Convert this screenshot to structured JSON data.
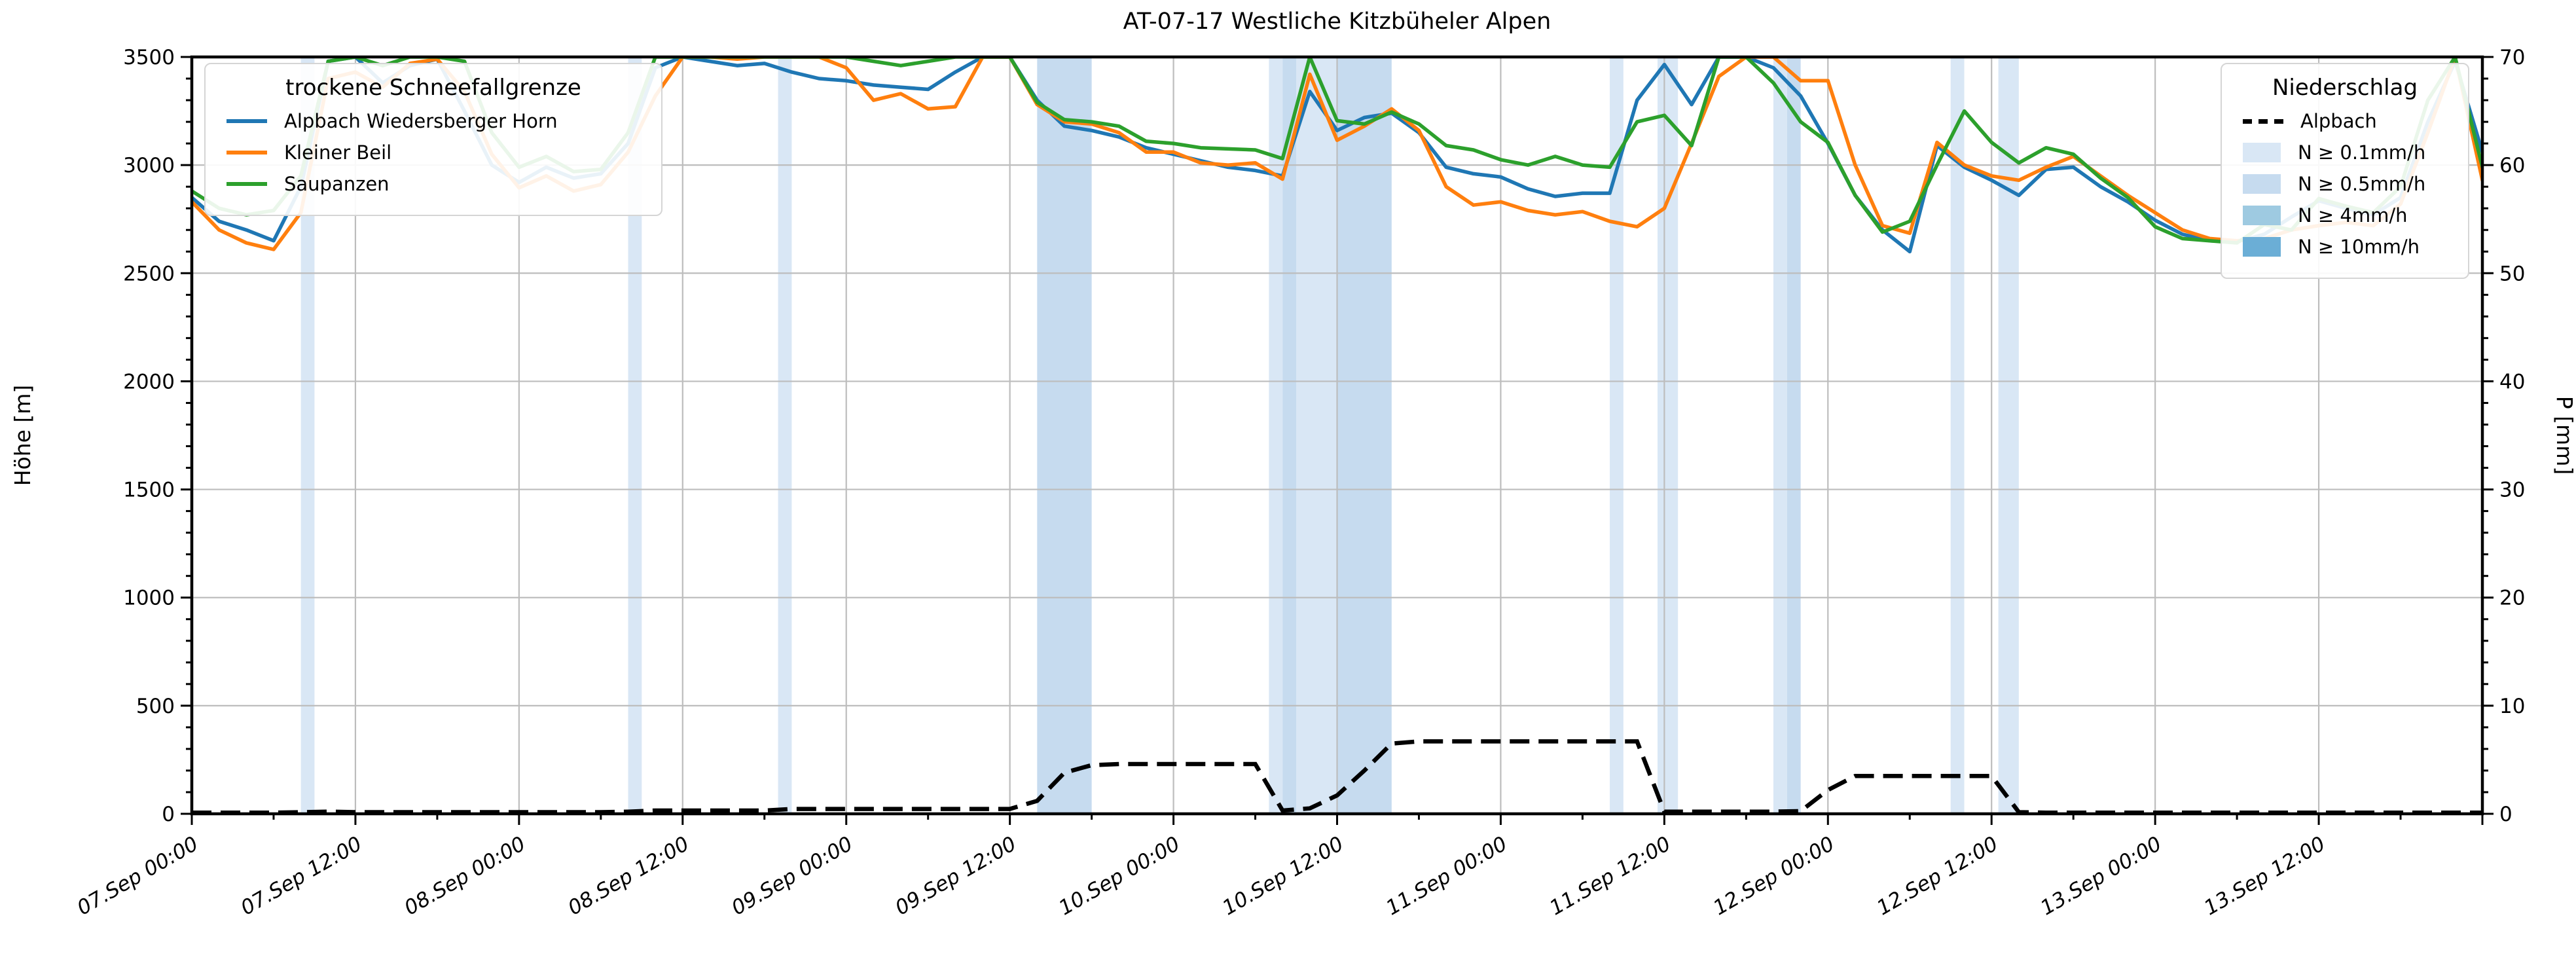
{
  "title": "AT-07-17 Westliche Kitzbüheler Alpen",
  "axes": {
    "y_left_label": "Höhe [m]",
    "y_right_label": "P [mm]",
    "y_left_ticks": [
      "0",
      "500",
      "1000",
      "1500",
      "2000",
      "2500",
      "3000",
      "3500"
    ],
    "y_right_ticks": [
      "0",
      "10",
      "20",
      "30",
      "40",
      "50",
      "60",
      "70"
    ]
  },
  "legend_snowline": {
    "title": "trockene Schneefallgrenze",
    "items": [
      {
        "label": "Alpbach Wiedersberger Horn",
        "color": "#1f77b4"
      },
      {
        "label": "Kleiner Beil",
        "color": "#ff7f0e"
      },
      {
        "label": "Saupanzen",
        "color": "#2ca02c"
      }
    ]
  },
  "legend_precip": {
    "title": "Niederschlag",
    "line_item": {
      "label": "Alpbach",
      "color": "#000000"
    },
    "band_items": [
      {
        "label": "N ≥ 0.1mm/h",
        "color": "#d9e7f5"
      },
      {
        "label": "N ≥ 0.5mm/h",
        "color": "#c6dbef"
      },
      {
        "label": "N ≥ 4mm/h",
        "color": "#9ecae1"
      },
      {
        "label": "N ≥ 10mm/h",
        "color": "#6baed6"
      }
    ]
  },
  "colors": {
    "grid": "#bdbdbd",
    "spine": "#000000",
    "band_levels": {
      "0.1": "#d9e7f5",
      "0.5": "#c6dbef",
      "4": "#9ecae1",
      "10": "#6baed6"
    }
  },
  "chart_data": {
    "type": "line",
    "title": "AT-07-17 Westliche Kitzbüheler Alpen",
    "xlabel": "",
    "ylabel_left": "Höhe [m]",
    "ylabel_right": "P [mm]",
    "x_unit": "hours since 07.Sep 00:00",
    "x_range": [
      0,
      168
    ],
    "x_major_tick_hours": 12,
    "x_minor_tick_hours": 6,
    "y_left_range": [
      0,
      3500
    ],
    "y_left_major": 500,
    "y_left_minor": 100,
    "y_right_range": [
      0,
      70
    ],
    "y_right_major": 10,
    "y_right_minor": 2,
    "grid": true,
    "x_tick_labels": [
      "07.Sep 00:00",
      "07.Sep 12:00",
      "08.Sep 00:00",
      "08.Sep 12:00",
      "09.Sep 00:00",
      "09.Sep 12:00",
      "10.Sep 00:00",
      "10.Sep 12:00",
      "11.Sep 00:00",
      "11.Sep 12:00",
      "12.Sep 00:00",
      "12.Sep 12:00",
      "13.Sep 00:00",
      "13.Sep 12:00"
    ],
    "x_hours": [
      0,
      2,
      4,
      6,
      8,
      10,
      12,
      14,
      16,
      18,
      20,
      22,
      24,
      26,
      28,
      30,
      32,
      34,
      36,
      38,
      40,
      42,
      44,
      46,
      48,
      50,
      52,
      54,
      56,
      58,
      60,
      62,
      64,
      66,
      68,
      70,
      72,
      74,
      76,
      78,
      80,
      82,
      84,
      86,
      88,
      90,
      92,
      94,
      96,
      98,
      100,
      102,
      104,
      106,
      108,
      110,
      112,
      114,
      116,
      118,
      120,
      122,
      124,
      126,
      128,
      130,
      132,
      134,
      136,
      138,
      140,
      142,
      144,
      146,
      148,
      150,
      152,
      154,
      156,
      158,
      160,
      162,
      164,
      166,
      168
    ],
    "series": [
      {
        "name": "Alpbach Wiedersberger Horn",
        "axis": "left",
        "color": "#1f77b4",
        "values": [
          2850,
          2740,
          2700,
          2650,
          2900,
          3480,
          3500,
          3380,
          3460,
          3490,
          3250,
          3000,
          2920,
          2990,
          2940,
          2960,
          3100,
          3450,
          3500,
          3480,
          3460,
          3470,
          3430,
          3400,
          3390,
          3370,
          3360,
          3350,
          3430,
          3500,
          3500,
          3300,
          3180,
          3160,
          3130,
          3080,
          3050,
          3020,
          2990,
          2975,
          2950,
          3340,
          3160,
          3220,
          3240,
          3150,
          2990,
          2960,
          2945,
          2890,
          2855,
          2870,
          2870,
          3300,
          3465,
          3280,
          3500,
          3500,
          3450,
          3320,
          3100,
          2860,
          2700,
          2600,
          3090,
          2990,
          2930,
          2860,
          2980,
          2990,
          2900,
          2830,
          2745,
          2680,
          2650,
          2645,
          2680,
          2760,
          2835,
          2800,
          2770,
          2850,
          3200,
          3480,
          3060
        ]
      },
      {
        "name": "Kleiner Beil",
        "axis": "left",
        "color": "#ff7f0e",
        "values": [
          2830,
          2700,
          2640,
          2610,
          2780,
          3400,
          3430,
          3360,
          3470,
          3490,
          3340,
          3050,
          2895,
          2950,
          2880,
          2910,
          3060,
          3320,
          3500,
          3500,
          3490,
          3500,
          3500,
          3500,
          3450,
          3300,
          3330,
          3260,
          3270,
          3500,
          3500,
          3280,
          3200,
          3190,
          3150,
          3060,
          3060,
          3010,
          3000,
          3010,
          2935,
          3420,
          3115,
          3180,
          3260,
          3160,
          2900,
          2815,
          2830,
          2790,
          2770,
          2785,
          2740,
          2715,
          2800,
          3100,
          3410,
          3500,
          3500,
          3390,
          3390,
          3000,
          2720,
          2685,
          3105,
          3000,
          2950,
          2930,
          2990,
          3040,
          2950,
          2860,
          2780,
          2700,
          2660,
          2650,
          2660,
          2700,
          2720,
          2735,
          2720,
          2820,
          3150,
          3500,
          2930
        ]
      },
      {
        "name": "Saupanzen",
        "axis": "left",
        "color": "#2ca02c",
        "values": [
          2880,
          2800,
          2770,
          2790,
          2950,
          3480,
          3500,
          3460,
          3500,
          3500,
          3480,
          3150,
          2990,
          3040,
          2970,
          2980,
          3150,
          3500,
          3500,
          3500,
          3500,
          3500,
          3500,
          3500,
          3500,
          3480,
          3460,
          3480,
          3500,
          3500,
          3500,
          3290,
          3210,
          3200,
          3180,
          3110,
          3100,
          3080,
          3075,
          3070,
          3030,
          3500,
          3205,
          3190,
          3245,
          3190,
          3090,
          3070,
          3025,
          3000,
          3040,
          3000,
          2990,
          3200,
          3230,
          3090,
          3500,
          3500,
          3380,
          3200,
          3105,
          2860,
          2690,
          2740,
          3000,
          3250,
          3105,
          3010,
          3080,
          3050,
          2940,
          2850,
          2715,
          2660,
          2650,
          2640,
          2725,
          2700,
          2845,
          2810,
          2780,
          2900,
          3300,
          3500,
          2990
        ]
      }
    ],
    "precip_line": {
      "name": "Alpbach",
      "axis": "right",
      "style": "dashed",
      "color": "#000000",
      "values": [
        0.1,
        0.1,
        0.1,
        0.1,
        0.15,
        0.2,
        0.15,
        0.15,
        0.15,
        0.15,
        0.15,
        0.15,
        0.15,
        0.15,
        0.15,
        0.15,
        0.2,
        0.3,
        0.3,
        0.3,
        0.3,
        0.3,
        0.45,
        0.45,
        0.45,
        0.45,
        0.45,
        0.45,
        0.45,
        0.45,
        0.45,
        1.2,
        3.8,
        4.5,
        4.6,
        4.6,
        4.6,
        4.6,
        4.6,
        4.6,
        0.3,
        0.5,
        1.7,
        4.0,
        6.5,
        6.7,
        6.7,
        6.7,
        6.7,
        6.7,
        6.7,
        6.7,
        6.7,
        6.7,
        0.2,
        0.2,
        0.2,
        0.2,
        0.2,
        0.25,
        2.2,
        3.5,
        3.5,
        3.5,
        3.5,
        3.5,
        3.5,
        0.15,
        0.1,
        0.1,
        0.1,
        0.1,
        0.1,
        0.1,
        0.1,
        0.1,
        0.1,
        0.1,
        0.1,
        0.1,
        0.1,
        0.1,
        0.1,
        0.1,
        0.1
      ]
    },
    "precip_bands": [
      {
        "start_h": 8,
        "end_h": 9,
        "level": "0.1"
      },
      {
        "start_h": 32,
        "end_h": 33,
        "level": "0.1"
      },
      {
        "start_h": 43,
        "end_h": 44,
        "level": "0.1"
      },
      {
        "start_h": 62,
        "end_h": 66,
        "level": "0.5"
      },
      {
        "start_h": 79,
        "end_h": 80,
        "level": "0.1"
      },
      {
        "start_h": 80,
        "end_h": 81,
        "level": "0.5"
      },
      {
        "start_h": 81,
        "end_h": 84,
        "level": "0.1"
      },
      {
        "start_h": 84,
        "end_h": 88,
        "level": "0.5"
      },
      {
        "start_h": 104,
        "end_h": 105,
        "level": "0.1"
      },
      {
        "start_h": 107.5,
        "end_h": 109,
        "level": "0.1"
      },
      {
        "start_h": 116,
        "end_h": 117,
        "level": "0.1"
      },
      {
        "start_h": 117,
        "end_h": 118,
        "level": "0.5"
      },
      {
        "start_h": 129,
        "end_h": 130,
        "level": "0.1"
      },
      {
        "start_h": 132.5,
        "end_h": 134,
        "level": "0.1"
      }
    ],
    "legend_positions": {
      "snowline": "upper left",
      "precip": "upper right"
    }
  }
}
